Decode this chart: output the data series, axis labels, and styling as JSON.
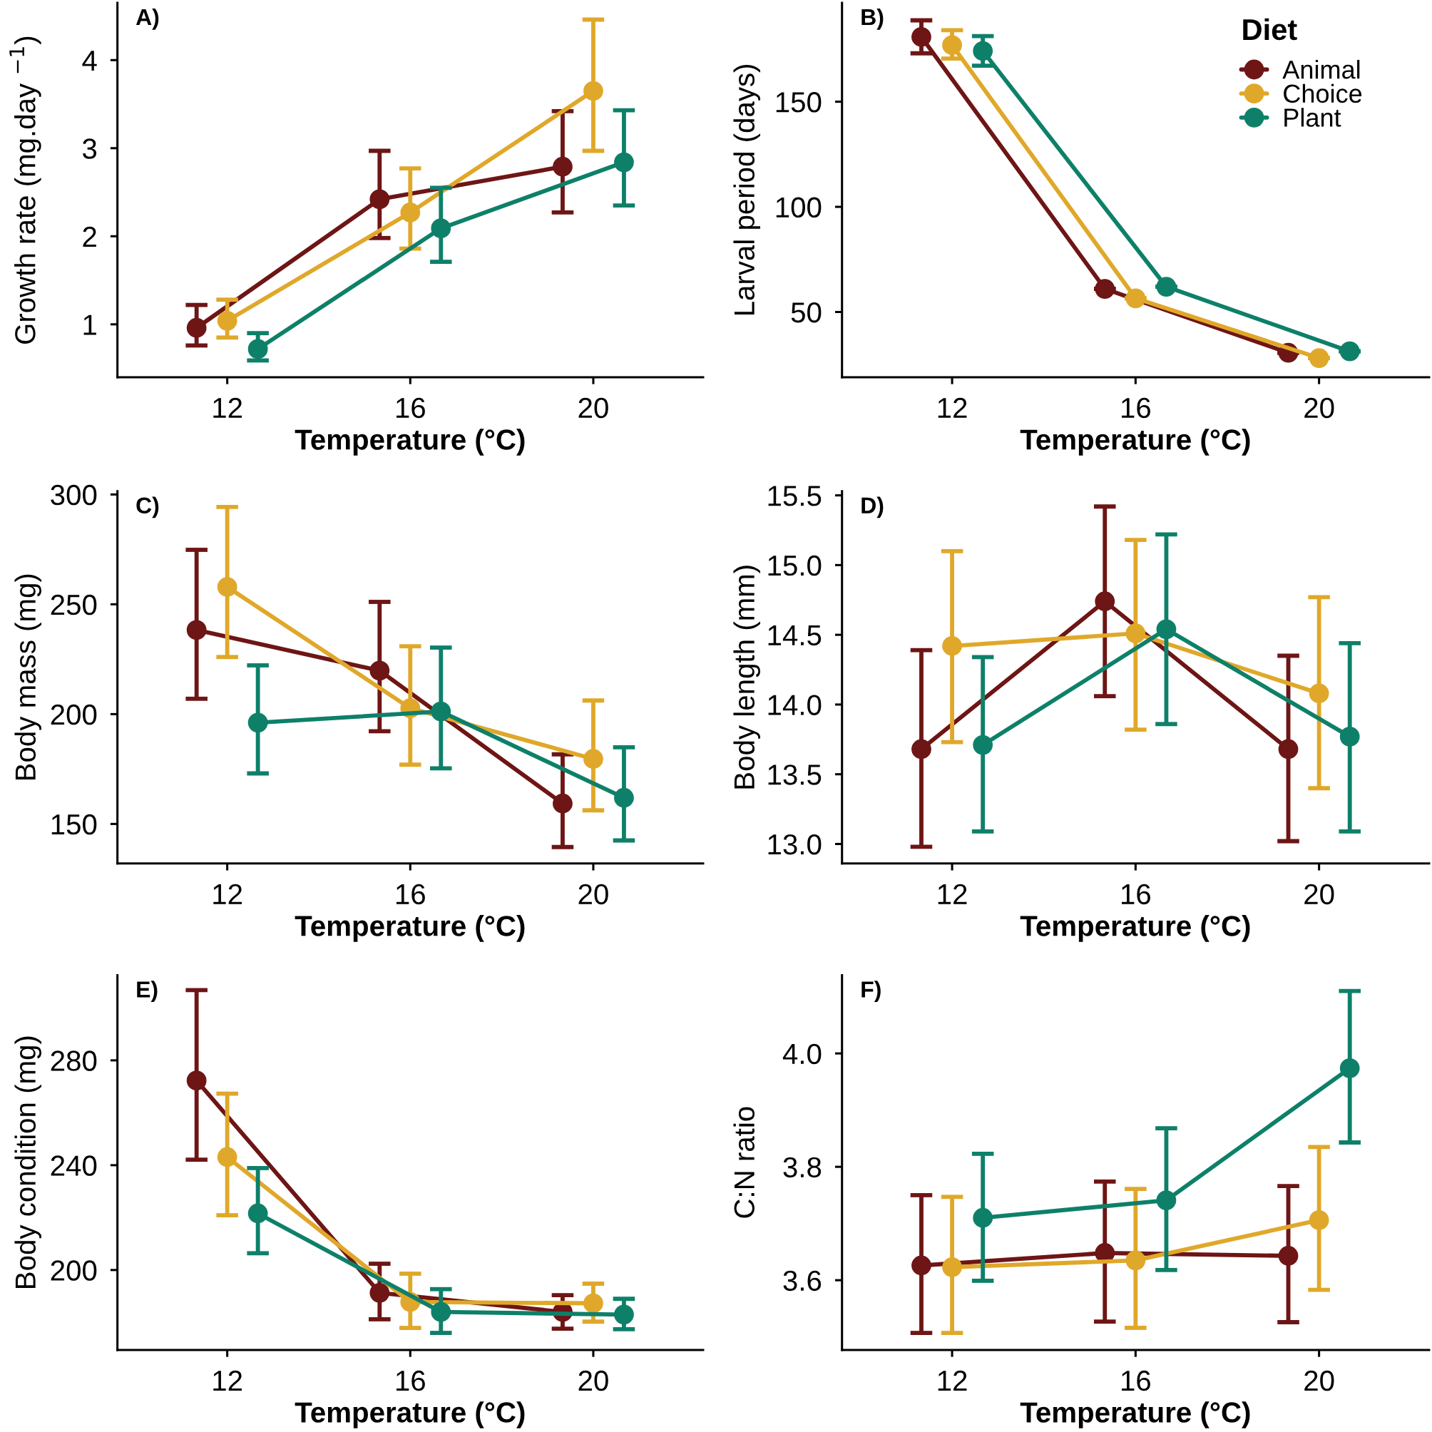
{
  "chart_data": [
    {
      "type": "line",
      "title": "A)",
      "xlabel": "Temperature (°C)",
      "ylabel": "Growth rate (mg.day $^{−1}$)",
      "xlim": [
        9.6,
        22.4
      ],
      "xticks": [
        12,
        16,
        20
      ],
      "ylim": [
        0.4,
        4.65
      ],
      "yticks": [
        1,
        2,
        3,
        4
      ],
      "marker": "circle",
      "line_style": "solid",
      "series": [
        {
          "color": "#6e1515",
          "x": [
            11.33,
            15.33,
            19.33
          ],
          "values": [
            0.96,
            2.42,
            2.79
          ],
          "errors": [
            [
              0.76,
              1.22
            ],
            [
              1.98,
              2.97
            ],
            [
              2.27,
              3.42
            ]
          ]
        },
        {
          "color": "#e0a82a",
          "x": [
            12,
            16,
            20
          ],
          "values": [
            1.04,
            2.27,
            3.65
          ],
          "errors": [
            [
              0.85,
              1.28
            ],
            [
              1.86,
              2.77
            ],
            [
              2.97,
              4.46
            ]
          ]
        },
        {
          "color": "#0e8069",
          "x": [
            12.67,
            16.67,
            20.67
          ],
          "values": [
            0.72,
            2.09,
            2.84
          ],
          "errors": [
            [
              0.59,
              0.9
            ],
            [
              1.71,
              2.55
            ],
            [
              2.35,
              3.43
            ]
          ]
        }
      ]
    },
    {
      "type": "line",
      "title": "B)",
      "xlabel": "Temperature (°C)",
      "ylabel": "Larval period (days)",
      "xlim": [
        9.6,
        22.4
      ],
      "xticks": [
        12,
        16,
        20
      ],
      "ylim": [
        19,
        197
      ],
      "yticks": [
        50,
        100,
        150
      ],
      "marker": "circle",
      "line_style": "solid",
      "legend": "top right",
      "legend_title": "Diet",
      "series": [
        {
          "name": "Animal",
          "color": "#6e1515",
          "x": [
            11.33,
            15.33,
            19.33
          ],
          "values": [
            180.8,
            61.0,
            30.6
          ],
          "errors": [
            [
              173.0,
              188.7
            ],
            [
              61.0,
              61.0
            ],
            [
              30.6,
              30.6
            ]
          ]
        },
        {
          "name": "Choice",
          "color": "#e0a82a",
          "x": [
            12,
            16,
            20
          ],
          "values": [
            176.9,
            56.5,
            28.1
          ],
          "errors": [
            [
              170.5,
              184.0
            ],
            [
              56.5,
              56.5
            ],
            [
              28.1,
              28.1
            ]
          ]
        },
        {
          "name": "Plant",
          "color": "#0e8069",
          "x": [
            12.67,
            16.67,
            20.67
          ],
          "values": [
            174.1,
            62.0,
            31.3
          ],
          "errors": [
            [
              167.1,
              181.2
            ],
            [
              62.0,
              62.0
            ],
            [
              31.3,
              31.3
            ]
          ]
        }
      ]
    },
    {
      "type": "line",
      "title": "C)",
      "xlabel": "Temperature (°C)",
      "ylabel": "Body mass (mg)",
      "xlim": [
        9.6,
        22.4
      ],
      "xticks": [
        12,
        16,
        20
      ],
      "ylim": [
        132,
        301.5
      ],
      "yticks": [
        150,
        200,
        250,
        300
      ],
      "marker": "circle",
      "line_style": "solid",
      "series": [
        {
          "color": "#6e1515",
          "x": [
            11.33,
            15.33,
            19.33
          ],
          "values": [
            238.3,
            219.8,
            159.3
          ],
          "errors": [
            [
              207.0,
              274.8
            ],
            [
              192.2,
              251.1
            ],
            [
              139.5,
              181.7
            ]
          ]
        },
        {
          "color": "#e0a82a",
          "x": [
            12,
            16,
            20
          ],
          "values": [
            257.9,
            202.7,
            179.6
          ],
          "errors": [
            [
              226.0,
              294.3
            ],
            [
              177.0,
              230.9
            ],
            [
              156.2,
              206.2
            ]
          ]
        },
        {
          "color": "#0e8069",
          "x": [
            12.67,
            16.67,
            20.67
          ],
          "values": [
            196.1,
            201.2,
            161.9
          ],
          "errors": [
            [
              173.0,
              222.2
            ],
            [
              175.3,
              230.3
            ],
            [
              142.5,
              184.9
            ]
          ]
        }
      ]
    },
    {
      "type": "line",
      "title": "D)",
      "xlabel": "Temperature (°C)",
      "ylabel": "Body length (mm)",
      "xlim": [
        9.6,
        22.4
      ],
      "xticks": [
        12,
        16,
        20
      ],
      "ylim": [
        12.86,
        15.53
      ],
      "yticks": [
        {
          "value": 13.0,
          "label": "13.0"
        },
        {
          "value": 13.5,
          "label": "13.5"
        },
        {
          "value": 14.0,
          "label": "14.0"
        },
        {
          "value": 14.5,
          "label": "14.5"
        },
        {
          "value": 15.0,
          "label": "15.0"
        },
        {
          "value": 15.5,
          "label": "15.5"
        }
      ],
      "marker": "circle",
      "line_style": "solid",
      "series": [
        {
          "color": "#6e1515",
          "x": [
            11.33,
            15.33,
            19.33
          ],
          "values": [
            13.68,
            14.74,
            13.68
          ],
          "errors": [
            [
              12.98,
              14.39
            ],
            [
              14.06,
              15.42
            ],
            [
              13.02,
              14.35
            ]
          ]
        },
        {
          "color": "#e0a82a",
          "x": [
            12,
            16,
            20
          ],
          "values": [
            14.42,
            14.51,
            14.08
          ],
          "errors": [
            [
              13.73,
              15.1
            ],
            [
              13.82,
              15.18
            ],
            [
              13.4,
              14.77
            ]
          ]
        },
        {
          "color": "#0e8069",
          "x": [
            12.67,
            16.67,
            20.67
          ],
          "values": [
            13.71,
            14.54,
            13.77
          ],
          "errors": [
            [
              13.09,
              14.34
            ],
            [
              13.86,
              15.22
            ],
            [
              13.09,
              14.44
            ]
          ]
        }
      ]
    },
    {
      "type": "line",
      "title": "E)",
      "xlabel": "Temperature (°C)",
      "ylabel": "Body condition (mg)",
      "xlim": [
        9.6,
        22.4
      ],
      "xticks": [
        12,
        16,
        20
      ],
      "ylim": [
        169.5,
        312.5
      ],
      "yticks": [
        200,
        240,
        280
      ],
      "marker": "circle",
      "line_style": "solid",
      "series": [
        {
          "color": "#6e1515",
          "x": [
            11.33,
            15.33,
            19.33
          ],
          "values": [
            272.3,
            191.3,
            184.0
          ],
          "errors": [
            [
              242.1,
              306.8
            ],
            [
              181.2,
              202.4
            ],
            [
              177.6,
              190.4
            ]
          ]
        },
        {
          "color": "#e0a82a",
          "x": [
            12,
            16,
            20
          ],
          "values": [
            243.1,
            187.8,
            187.3
          ],
          "errors": [
            [
              220.9,
              267.3
            ],
            [
              177.9,
              198.6
            ],
            [
              180.3,
              194.8
            ]
          ]
        },
        {
          "color": "#0e8069",
          "x": [
            12.67,
            16.67,
            20.67
          ],
          "values": [
            221.6,
            184.0,
            183.0
          ],
          "errors": [
            [
              206.4,
              238.9
            ],
            [
              176.0,
              192.7
            ],
            [
              177.4,
              189.0
            ]
          ]
        }
      ]
    },
    {
      "type": "line",
      "title": "F)",
      "xlabel": "Temperature (°C)",
      "ylabel": "C:N ratio",
      "xlim": [
        9.6,
        22.4
      ],
      "xticks": [
        12,
        16,
        20
      ],
      "ylim": [
        3.477,
        4.138
      ],
      "yticks": [
        {
          "value": 3.6,
          "label": "3.6"
        },
        {
          "value": 3.8,
          "label": "3.8"
        },
        {
          "value": 4.0,
          "label": "4.0"
        }
      ],
      "marker": "circle",
      "line_style": "solid",
      "series": [
        {
          "color": "#6e1515",
          "x": [
            11.33,
            15.33,
            19.33
          ],
          "values": [
            3.626,
            3.648,
            3.643
          ],
          "errors": [
            [
              3.507,
              3.75
            ],
            [
              3.527,
              3.774
            ],
            [
              3.526,
              3.766
            ]
          ]
        },
        {
          "color": "#e0a82a",
          "x": [
            12,
            16,
            20
          ],
          "values": [
            3.623,
            3.635,
            3.706
          ],
          "errors": [
            [
              3.507,
              3.747
            ],
            [
              3.516,
              3.761
            ],
            [
              3.583,
              3.835
            ]
          ]
        },
        {
          "color": "#0e8069",
          "x": [
            12.67,
            16.67,
            20.67
          ],
          "values": [
            3.71,
            3.741,
            3.974
          ],
          "errors": [
            [
              3.599,
              3.823
            ],
            [
              3.618,
              3.868
            ],
            [
              3.843,
              4.11
            ]
          ]
        }
      ]
    }
  ]
}
